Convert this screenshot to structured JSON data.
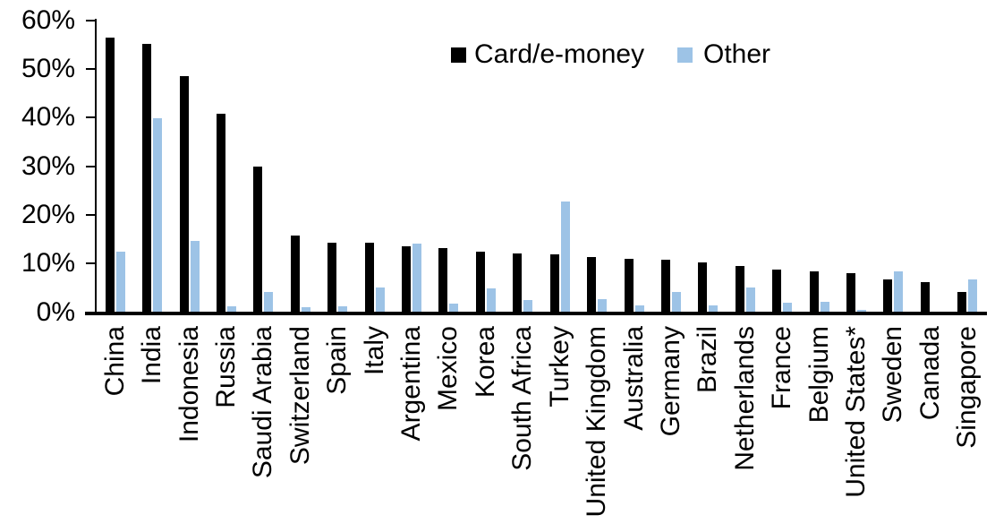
{
  "chart_data": {
    "type": "bar",
    "title": "",
    "xlabel": "",
    "ylabel": "",
    "ylim": [
      0,
      60
    ],
    "ytick_step": 10,
    "ytick_labels": [
      "0%",
      "10%",
      "20%",
      "30%",
      "40%",
      "50%",
      "60%"
    ],
    "grid": false,
    "legend_position": "top-center",
    "background_color": "#ffffff",
    "categories": [
      "China",
      "India",
      "Indonesia",
      "Russia",
      "Saudi Arabia",
      "Switzerland",
      "Spain",
      "Italy",
      "Argentina",
      "Mexico",
      "Korea",
      "South Africa",
      "Turkey",
      "United Kingdom",
      "Australia",
      "Germany",
      "Brazil",
      "Netherlands",
      "France",
      "Belgium",
      "United States*",
      "Sweden",
      "Canada",
      "Singapore"
    ],
    "series": [
      {
        "name": "Card/e-money",
        "color": "#000000",
        "values": [
          56.3,
          55.1,
          48.4,
          40.6,
          29.9,
          15.6,
          14.2,
          14.1,
          13.5,
          13.1,
          12.4,
          11.9,
          11.7,
          11.3,
          10.9,
          10.7,
          10.1,
          9.3,
          8.7,
          8.3,
          8.0,
          6.7,
          6.1,
          4.0
        ]
      },
      {
        "name": "Other",
        "color": "#9DC3E6",
        "values": [
          12.3,
          39.8,
          14.5,
          1.1,
          4.1,
          0.9,
          1.1,
          4.9,
          14.0,
          1.6,
          4.7,
          2.4,
          22.6,
          2.6,
          1.2,
          4.1,
          1.2,
          5.0,
          1.8,
          2.0,
          0.4,
          8.3,
          0,
          6.7
        ]
      }
    ]
  }
}
